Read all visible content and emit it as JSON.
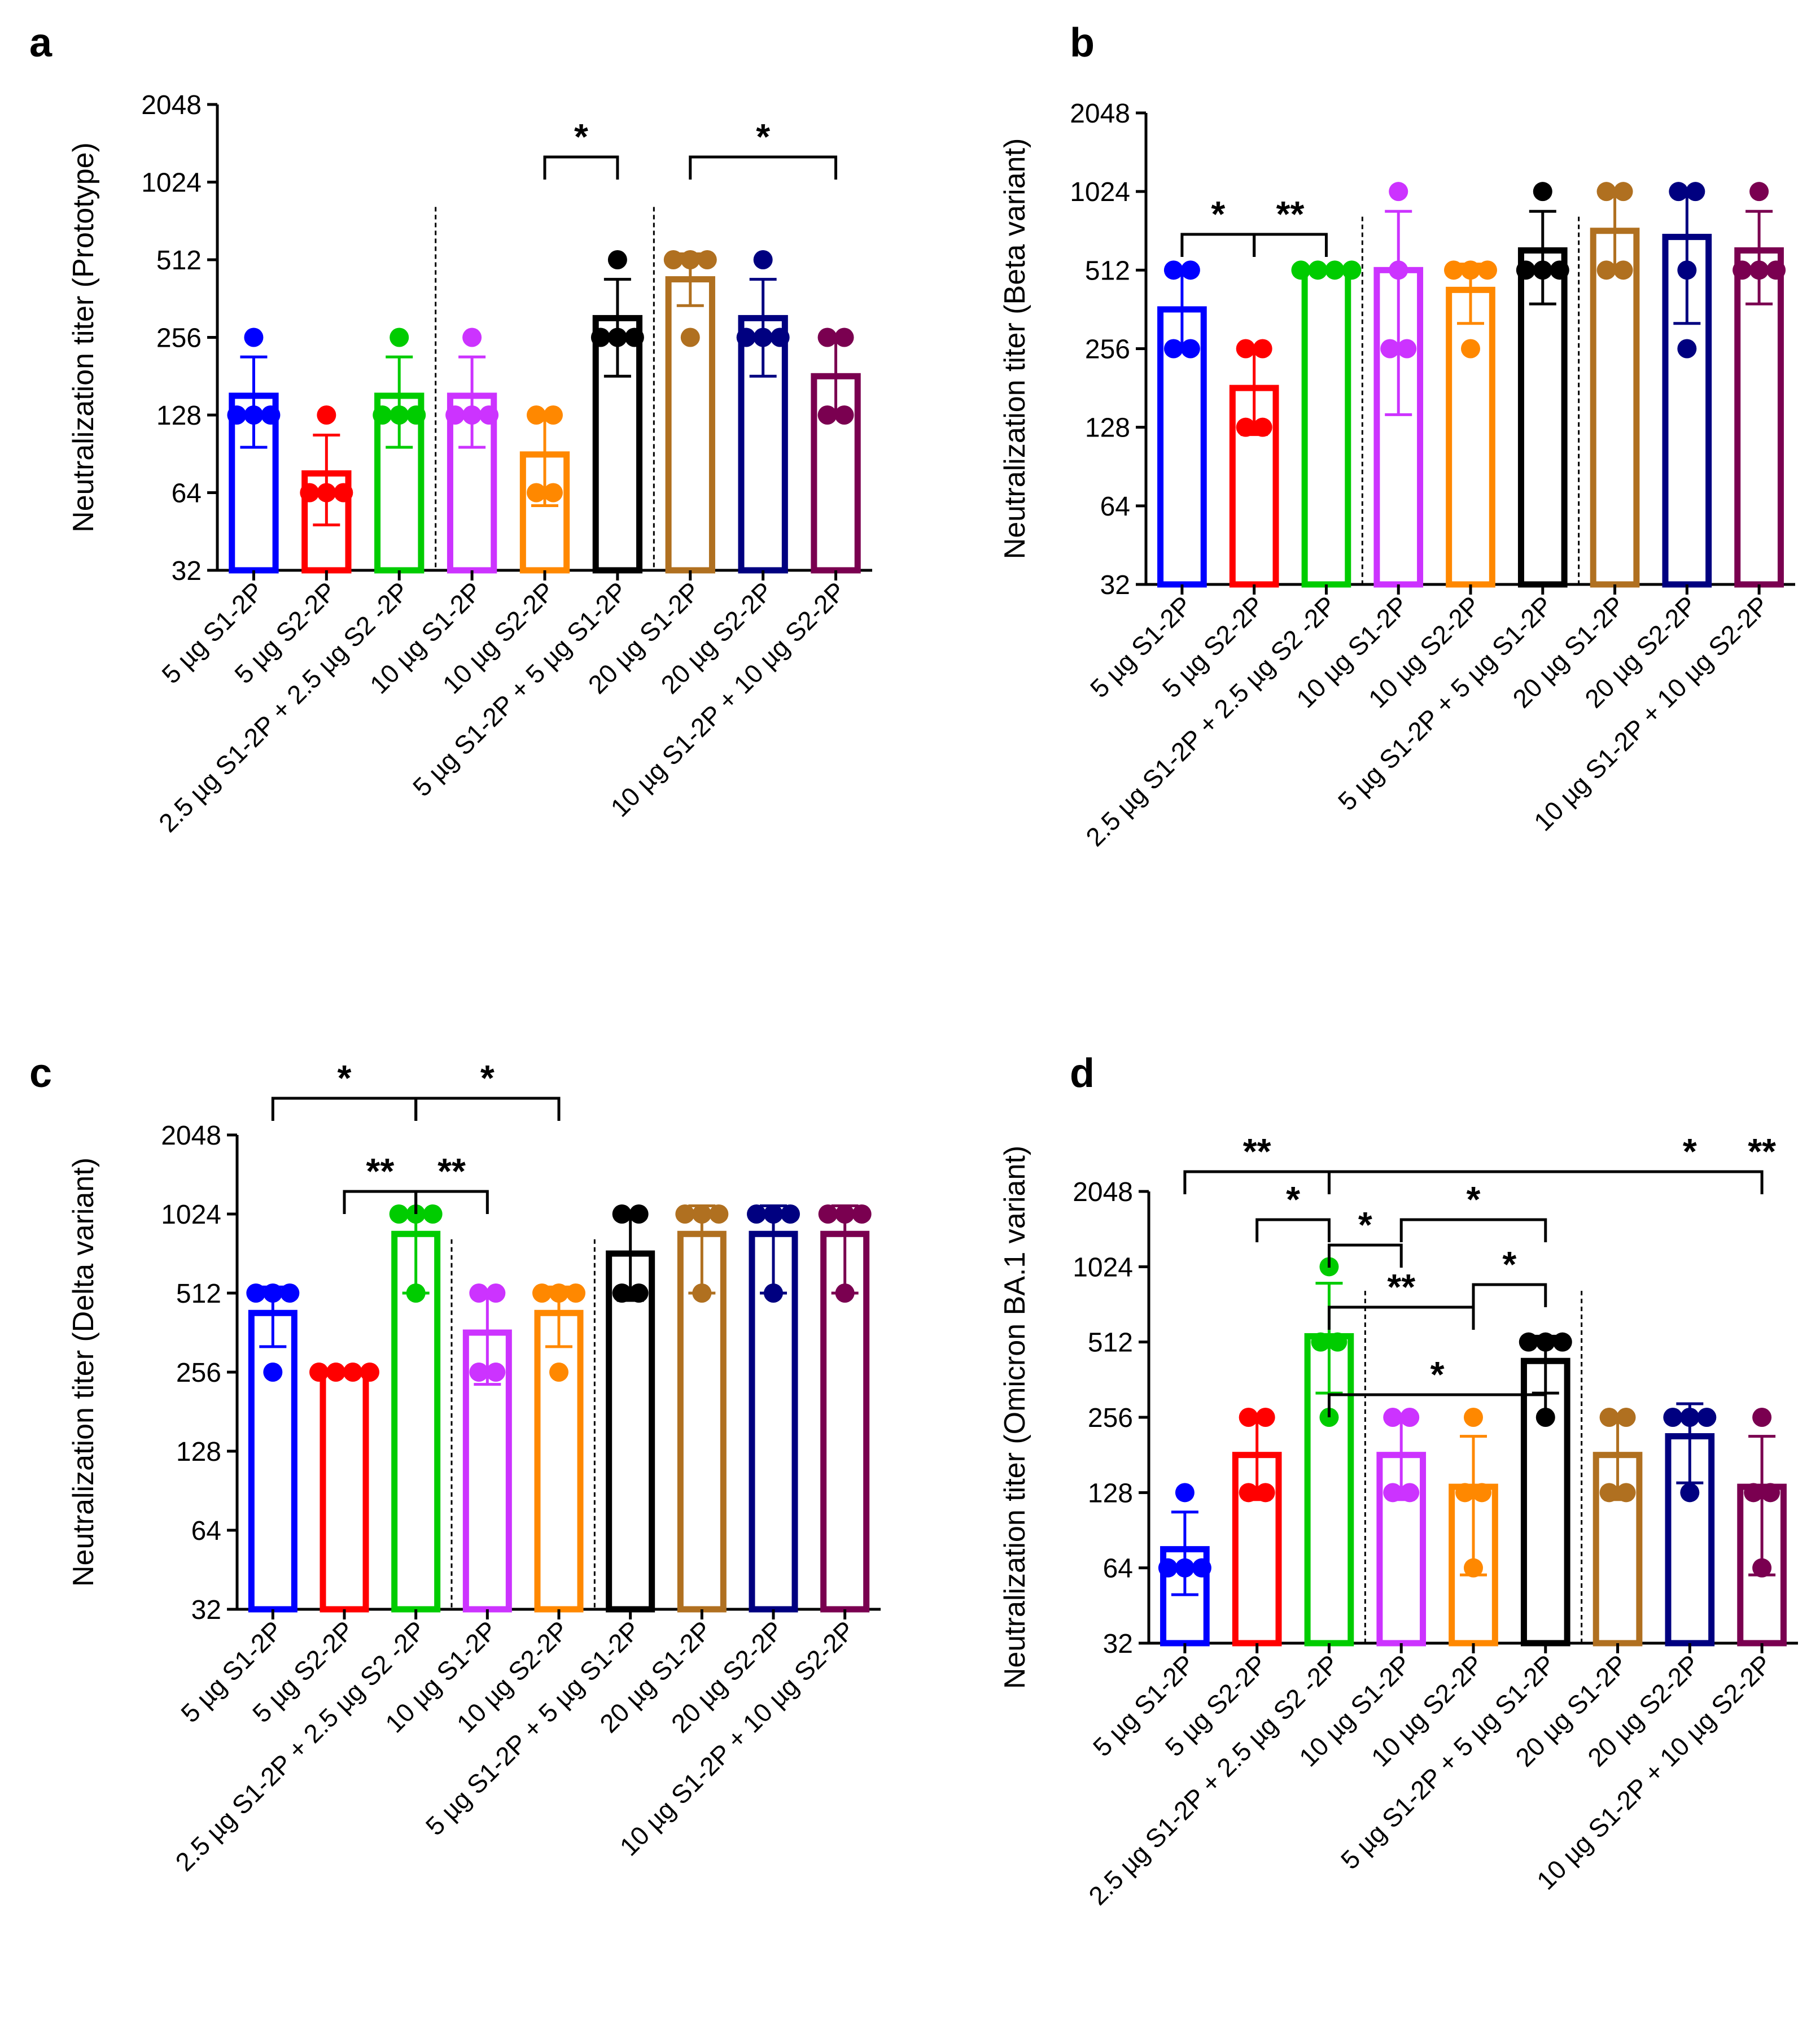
{
  "chart_data": [
    {
      "type": "bar",
      "panel": "a",
      "ylabel": "Neutralization titer (Prototype)",
      "yscale": "log2",
      "ylim": [
        32,
        2048
      ],
      "yticks": [
        "32",
        "64",
        "128",
        "256",
        "512",
        "1024",
        "2048"
      ],
      "categories": [
        "5 µg S1-2P",
        "5 µg S2-2P",
        "2.5 µg S1-2P +  2.5 µg S2 -2P",
        "10 µg S1-2P",
        "10 µg S2-2P",
        "5 µg S1-2P + 5 µg S1-2P",
        "20 µg S1-2P",
        "20 µg S2-2P",
        "10 µg S1-2P + 10 µg S2-2P"
      ],
      "colors": [
        "#0000ff",
        "#ff0000",
        "#00cc00",
        "#cc33ff",
        "#ff8800",
        "#000000",
        "#b07020",
        "#000080",
        "#7a0050"
      ],
      "means": [
        152,
        76,
        152,
        152,
        90,
        304,
        430,
        304,
        181
      ],
      "err_hi": [
        215,
        107,
        215,
        215,
        128,
        430,
        540,
        430,
        256
      ],
      "err_lo": [
        96,
        48,
        96,
        96,
        57,
        181,
        340,
        181,
        128
      ],
      "points": [
        [
          256,
          128,
          128,
          128
        ],
        [
          128,
          64,
          64,
          64
        ],
        [
          256,
          128,
          128,
          128
        ],
        [
          256,
          128,
          128,
          128
        ],
        [
          128,
          128,
          64,
          64
        ],
        [
          512,
          256,
          256,
          256
        ],
        [
          512,
          512,
          512,
          256
        ],
        [
          512,
          256,
          256,
          256
        ],
        [
          256,
          256,
          128,
          128
        ]
      ],
      "dividers_after": [
        3,
        6
      ],
      "brackets": [
        {
          "from": 5,
          "to": 6,
          "label": "*",
          "y": 1260
        },
        {
          "from": 7,
          "to": 9,
          "label": "*",
          "y": 1260
        }
      ]
    },
    {
      "type": "bar",
      "panel": "b",
      "ylabel": "Neutralization titer (Beta variant)",
      "yscale": "log2",
      "ylim": [
        32,
        2048
      ],
      "yticks": [
        "32",
        "64",
        "128",
        "256",
        "512",
        "1024",
        "2048"
      ],
      "categories": [
        "5 µg S1-2P",
        "5 µg S2-2P",
        "2.5 µg S1-2P +  2.5 µg S2 -2P",
        "10 µg S1-2P",
        "10 µg S2-2P",
        "5 µg S1-2P + 5 µg S1-2P",
        "20 µg S1-2P",
        "20 µg S2-2P",
        "10 µg S1-2P + 10 µg S2-2P"
      ],
      "colors": [
        "#0000ff",
        "#ff0000",
        "#00cc00",
        "#cc33ff",
        "#ff8800",
        "#000000",
        "#b07020",
        "#000080",
        "#7a0050"
      ],
      "means": [
        362,
        181,
        512,
        512,
        430,
        609,
        724,
        686,
        609
      ],
      "err_hi": [
        512,
        256,
        512,
        860,
        540,
        860,
        1024,
        1024,
        860
      ],
      "err_lo": [
        256,
        120,
        512,
        143,
        320,
        380,
        512,
        320,
        380
      ],
      "points": [
        [
          512,
          512,
          256,
          256
        ],
        [
          256,
          256,
          128,
          128
        ],
        [
          512,
          512,
          512,
          512
        ],
        [
          1024,
          512,
          256,
          256
        ],
        [
          512,
          512,
          512,
          256
        ],
        [
          1024,
          512,
          512,
          512
        ],
        [
          1024,
          1024,
          512,
          512
        ],
        [
          1024,
          1024,
          512,
          256
        ],
        [
          1024,
          512,
          512,
          512
        ]
      ],
      "dividers_after": [
        3,
        6
      ],
      "brackets": [
        {
          "from": 1,
          "to": 2,
          "label": "*",
          "y": 780
        },
        {
          "from": 2,
          "to": 3,
          "label": "**",
          "y": 780
        }
      ]
    },
    {
      "type": "bar",
      "panel": "c",
      "ylabel": "Neutralization titer (Delta variant)",
      "yscale": "log2",
      "ylim": [
        32,
        2048
      ],
      "yticks": [
        "32",
        "64",
        "128",
        "256",
        "512",
        "1024",
        "2048"
      ],
      "categories": [
        "5 µg S1-2P",
        "5 µg S2-2P",
        "2.5 µg S1-2P + 2.5 µg S2 -2P",
        "10 µg S1-2P",
        "10 µg S2-2P",
        "5 µg S1-2P + 5 µg S1-2P",
        "20 µg S1-2P",
        "20 µg S2-2P",
        "10 µg S1-2P + 10 µg S2-2P"
      ],
      "colors": [
        "#0000ff",
        "#ff0000",
        "#00cc00",
        "#cc33ff",
        "#ff8800",
        "#000000",
        "#b07020",
        "#000080",
        "#7a0050"
      ],
      "means": [
        430,
        256,
        860,
        362,
        430,
        724,
        860,
        860,
        860
      ],
      "err_hi": [
        540,
        256,
        1024,
        512,
        540,
        1024,
        1100,
        1100,
        1100
      ],
      "err_lo": [
        320,
        256,
        512,
        230,
        320,
        480,
        512,
        512,
        512
      ],
      "points": [
        [
          512,
          512,
          512,
          256
        ],
        [
          256,
          256,
          256,
          256
        ],
        [
          1024,
          1024,
          1024,
          512
        ],
        [
          512,
          512,
          256,
          256
        ],
        [
          512,
          512,
          512,
          256
        ],
        [
          1024,
          1024,
          512,
          512
        ],
        [
          1024,
          1024,
          1024,
          512
        ],
        [
          1024,
          1024,
          1024,
          512
        ],
        [
          1024,
          1024,
          1024,
          512
        ]
      ],
      "dividers_after": [
        3,
        5
      ],
      "brackets": [
        {
          "from": 1,
          "to": 3,
          "label": "*",
          "y": 2820
        },
        {
          "from": 3,
          "to": 5,
          "label": "*",
          "y": 2820
        },
        {
          "from": 2,
          "to": 3,
          "label": "**",
          "y": 2880
        },
        {
          "from": 3,
          "to": 4,
          "label": "**",
          "y": 2880
        }
      ]
    },
    {
      "type": "bar",
      "panel": "d",
      "ylabel": "Neutralization titer (Omicron BA.1 variant)",
      "yscale": "log2",
      "ylim": [
        32,
        2048
      ],
      "yticks": [
        "32",
        "64",
        "128",
        "256",
        "512",
        "1024",
        "2048"
      ],
      "categories": [
        "5 µg S1-2P",
        "5 µg S2-2P",
        "2.5 µg S1-2P + 2.5 µg S2 -2P",
        "10 µg S1-2P",
        "10 µg S2-2P",
        "5 µg S1-2P + 5 µg S1-2P",
        "20 µg S1-2P",
        "20 µg S2-2P",
        "10 µg S1-2P + 10 µg S2-2P"
      ],
      "colors": [
        "#0000ff",
        "#ff0000",
        "#00cc00",
        "#cc33ff",
        "#ff8800",
        "#000000",
        "#b07020",
        "#000080",
        "#7a0050"
      ],
      "means": [
        76,
        181,
        540,
        181,
        135,
        430,
        181,
        215,
        135
      ],
      "err_hi": [
        107,
        256,
        880,
        256,
        215,
        540,
        256,
        290,
        215
      ],
      "err_lo": [
        50,
        120,
        320,
        120,
        60,
        320,
        120,
        140,
        60
      ],
      "points": [
        [
          128,
          64,
          64,
          64
        ],
        [
          256,
          256,
          128,
          128
        ],
        [
          1024,
          512,
          512,
          256
        ],
        [
          256,
          256,
          128,
          128
        ],
        [
          256,
          128,
          128,
          64
        ],
        [
          512,
          512,
          512,
          256
        ],
        [
          256,
          256,
          128,
          128
        ],
        [
          256,
          256,
          256,
          128
        ],
        [
          256,
          128,
          128,
          64
        ]
      ],
      "dividers_after": [
        3,
        6
      ],
      "brackets": [
        {
          "from": 1,
          "to": 3,
          "label": "**",
          "y": 2080
        },
        {
          "from": 3,
          "to": 9,
          "label": "*",
          "y": 2080,
          "label_at": 8
        },
        {
          "from": 3,
          "to": 9,
          "label": "**",
          "y": 2080,
          "label_only": true,
          "label_at": 9
        },
        {
          "from": 2,
          "to": 3,
          "label": "*",
          "y": 2165
        },
        {
          "from": 3,
          "to": 4,
          "label": "*",
          "y": 2210
        },
        {
          "from": 4,
          "to": 6,
          "label": "*",
          "y": 2160
        },
        {
          "from": 3,
          "to": 5,
          "label": "**",
          "y": 2320
        },
        {
          "from": 5,
          "to": 6,
          "label": "*",
          "y": 2275
        },
        {
          "from": 3,
          "to": 6,
          "label": "*",
          "y": 2475
        }
      ]
    }
  ]
}
